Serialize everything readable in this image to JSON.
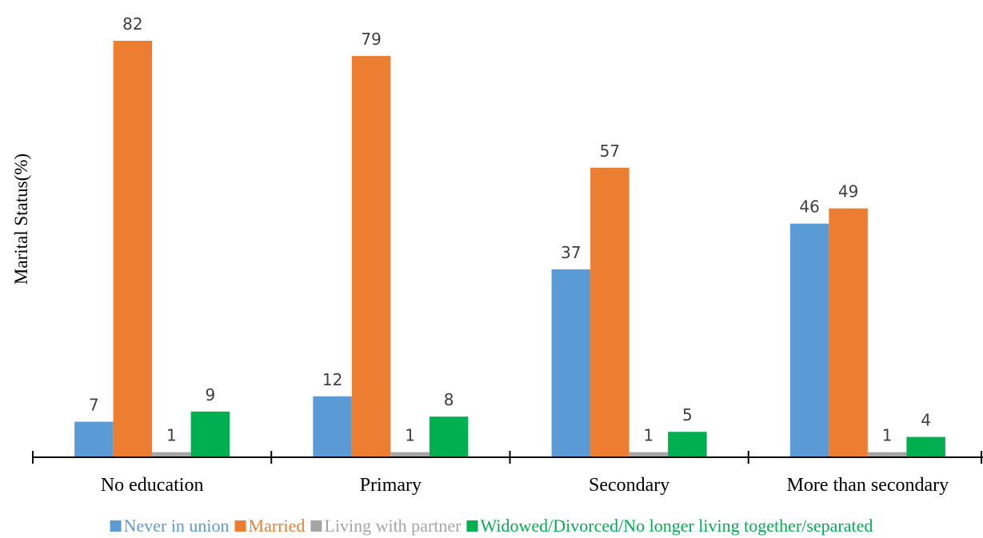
{
  "chart_data": {
    "type": "bar",
    "title": "",
    "xlabel": "",
    "ylabel": "Marital Status(%)",
    "categories": [
      "No education",
      "Primary",
      "Secondary",
      "More than secondary"
    ],
    "series": [
      {
        "name": "Never in union",
        "color": "#5B9BD5",
        "values": [
          7,
          12,
          37,
          46
        ]
      },
      {
        "name": "Married",
        "color": "#ED7D31",
        "values": [
          82,
          79,
          57,
          49
        ]
      },
      {
        "name": "Living with partner",
        "color": "#A5A5A5",
        "values": [
          1,
          1,
          1,
          1
        ]
      },
      {
        "name": "Widowed/Divorced/No longer living together/separated",
        "color": "#00B050",
        "values": [
          9,
          8,
          5,
          4
        ]
      }
    ],
    "ylim": [
      0,
      86
    ],
    "grid": false,
    "legend": "bottom"
  }
}
